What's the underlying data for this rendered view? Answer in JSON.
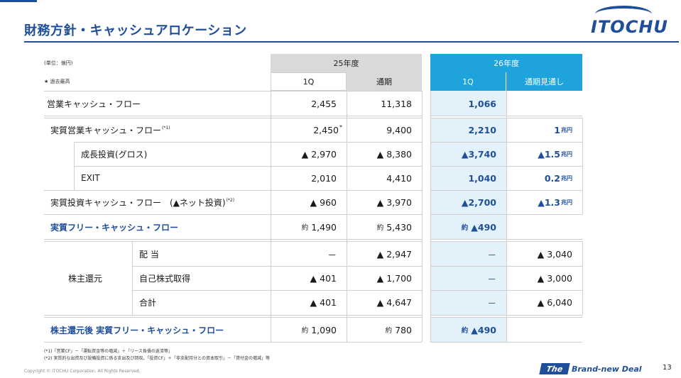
{
  "slide": {
    "title": "財務方針・キャッシュアロケーション",
    "unit_note": "(単位：億円)",
    "legend_note": "★ 過去最高",
    "page_number": "13",
    "copyright": "Copyright © ITOCHU Corporation. All Rights Reserved.",
    "logo_text": "ITOCHU",
    "tagline_the": "The",
    "tagline_rest": "Brand-new Deal"
  },
  "header": {
    "fy25": "25年度",
    "fy25_1q": "1Q",
    "fy25_full": "通期",
    "fy26": "26年度",
    "fy26_1q": "1Q",
    "fy26_forecast": "通期見通し"
  },
  "rows": {
    "op_cf": {
      "label": "営業キャッシュ・フロー",
      "v25_1q": "2,455",
      "v25_fy": "11,318",
      "v26_1q": "1,066",
      "v26_fc": ""
    },
    "real_op_cf": {
      "label": "実質営業キャッシュ・フロー",
      "note": "(*1)",
      "v25_1q": "2,450",
      "v25_1q_mark": "*",
      "v25_fy": "9,400",
      "v26_1q": "2,210",
      "v26_fc_num": "1",
      "v26_fc_unit": "兆円"
    },
    "growth_inv": {
      "label": "成長投資(グロス)",
      "v25_1q": "▲ 2,970",
      "v25_fy": "▲ 8,380",
      "v26_1q": "▲3,740",
      "v26_fc_num": "▲1.5",
      "v26_fc_unit": "兆円"
    },
    "exit": {
      "label": "EXIT",
      "v25_1q": "2,010",
      "v25_fy": "4,410",
      "v26_1q": "1,040",
      "v26_fc_num": "0.2",
      "v26_fc_unit": "兆円"
    },
    "real_inv_cf": {
      "label": "実質投資キャッシュ・フロー　(▲ネット投資)",
      "note": "(*2)",
      "v25_1q": "▲ 960",
      "v25_fy": "▲ 3,970",
      "v26_1q": "▲2,700",
      "v26_fc_num": "▲1.3",
      "v26_fc_unit": "兆円"
    },
    "real_free_cf": {
      "label": "実質フリー・キャッシュ・フロー",
      "yaku": "約",
      "v25_1q": "1,490",
      "v25_fy": "5,430",
      "v26_1q": "▲490"
    },
    "dividend": {
      "label": "配 当",
      "v25_1q": "－",
      "v25_fy": "▲ 2,947",
      "v26_1q": "－",
      "v26_fc": "▲ 3,040"
    },
    "buyback": {
      "label": "自己株式取得",
      "v25_1q": "▲ 401",
      "v25_fy": "▲ 1,700",
      "v26_1q": "－",
      "v26_fc": "▲ 3,000"
    },
    "total": {
      "label": "合計",
      "v25_1q": "▲ 401",
      "v25_fy": "▲ 4,647",
      "v26_1q": "－",
      "v26_fc": "▲ 6,040"
    },
    "sh_return_group": "株主還元",
    "after_return_cf": {
      "label": "株主還元後 実質フリー・キャッシュ・フロー",
      "yaku": "約",
      "v25_1q": "1,090",
      "v25_fy": "780",
      "v26_1q": "▲490"
    }
  },
  "footnotes": [
    "(*1)「営業CF」－「運転資金等の増減」＋「リース負債の返済等」",
    "(*2) 実質的な出資及び設備投資に係る支出及び回収。「投資CF」＋「非支配持分との資本取引」－「貸付金の増減」等"
  ],
  "colors": {
    "brand": "#1f4e9a",
    "accent": "#1fa3dd",
    "fy26_bg": "#e3f1fa",
    "header_gray": "#d9d9d9"
  }
}
